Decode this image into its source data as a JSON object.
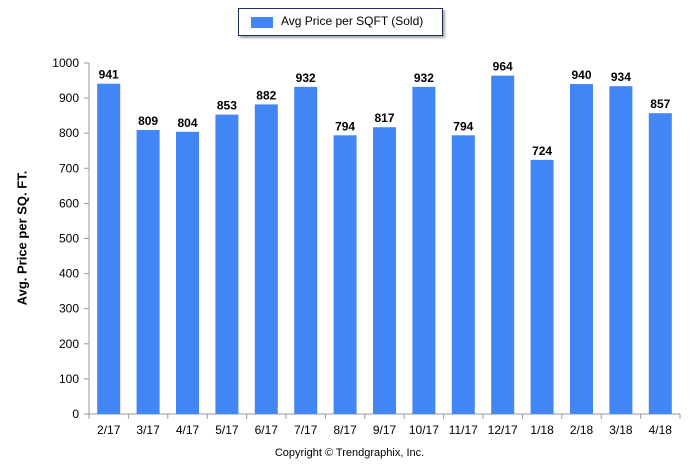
{
  "chart_data": {
    "type": "bar",
    "categories": [
      "2/17",
      "3/17",
      "4/17",
      "5/17",
      "6/17",
      "7/17",
      "8/17",
      "9/17",
      "10/17",
      "11/17",
      "12/17",
      "1/18",
      "2/18",
      "3/18",
      "4/18"
    ],
    "series": [
      {
        "name": "Avg Price per SQFT (Sold)",
        "values": [
          941,
          809,
          804,
          853,
          882,
          932,
          794,
          817,
          932,
          794,
          964,
          724,
          940,
          934,
          857
        ]
      }
    ],
    "ylabel": "Avg. Price per SQ. FT.",
    "xlabel": "",
    "ylim": [
      0,
      1000
    ],
    "yticks": [
      0,
      100,
      200,
      300,
      400,
      500,
      600,
      700,
      800,
      900,
      1000
    ],
    "grid": false,
    "legend_position": "top-center",
    "bar_color": "#4285f4",
    "data_labels": true
  },
  "footer": "Copyright © Trendgraphix, Inc."
}
